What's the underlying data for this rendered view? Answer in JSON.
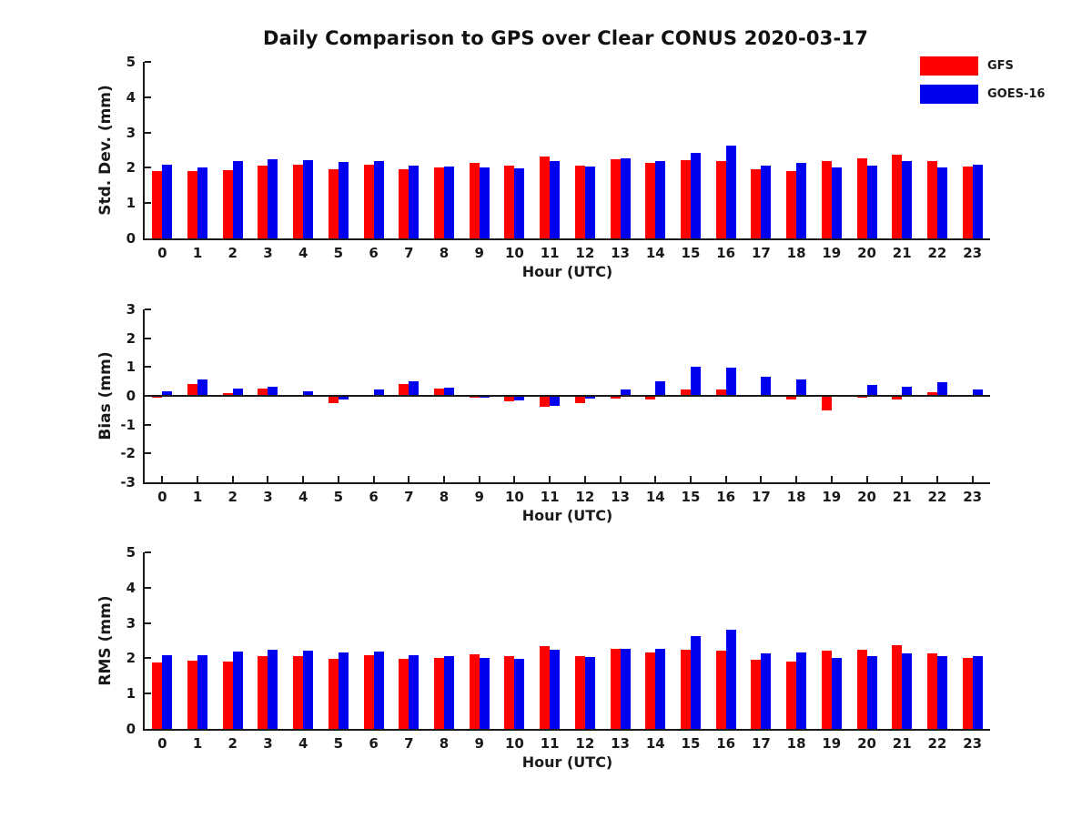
{
  "title": "Daily Comparison to GPS over Clear CONUS 2020-03-17",
  "legend": {
    "position": "top-right",
    "items": [
      {
        "label": "GFS",
        "color": "#ff0000"
      },
      {
        "label": "GOES-16",
        "color": "#0000f0"
      }
    ]
  },
  "colors": {
    "gfs": "#ff0000",
    "goes16": "#0000f0",
    "axis": "#1a1a1a"
  },
  "chart_data": [
    {
      "type": "bar",
      "panel": "std-dev",
      "ylabel": "Std. Dev. (mm)",
      "xlabel": "Hour (UTC)",
      "ylim": [
        0,
        5
      ],
      "yticks": [
        0,
        1,
        2,
        3,
        4,
        5
      ],
      "grid": false,
      "zero_line": false,
      "categories": [
        "0",
        "1",
        "2",
        "3",
        "4",
        "5",
        "6",
        "7",
        "8",
        "9",
        "10",
        "11",
        "12",
        "13",
        "14",
        "15",
        "16",
        "17",
        "18",
        "19",
        "20",
        "21",
        "22",
        "23"
      ],
      "series": [
        {
          "name": "GFS",
          "color": "#ff0000",
          "values": [
            1.9,
            1.92,
            1.94,
            2.06,
            2.08,
            1.96,
            2.08,
            1.97,
            2.01,
            2.13,
            2.07,
            2.31,
            2.07,
            2.25,
            2.15,
            2.22,
            2.2,
            1.97,
            1.91,
            2.19,
            2.26,
            2.38,
            2.18,
            2.03
          ]
        },
        {
          "name": "GOES-16",
          "color": "#0000f0",
          "values": [
            2.08,
            2.01,
            2.19,
            2.24,
            2.21,
            2.16,
            2.19,
            2.05,
            2.04,
            2.02,
            1.98,
            2.2,
            2.03,
            2.28,
            2.2,
            2.43,
            2.64,
            2.07,
            2.13,
            2.02,
            2.06,
            2.18,
            2.02,
            2.08
          ]
        }
      ]
    },
    {
      "type": "bar",
      "panel": "bias",
      "ylabel": "Bias (mm)",
      "xlabel": "Hour (UTC)",
      "ylim": [
        -3,
        3
      ],
      "yticks": [
        -3,
        -2,
        -1,
        0,
        1,
        2,
        3
      ],
      "grid": false,
      "zero_line": true,
      "categories": [
        "0",
        "1",
        "2",
        "3",
        "4",
        "5",
        "6",
        "7",
        "8",
        "9",
        "10",
        "11",
        "12",
        "13",
        "14",
        "15",
        "16",
        "17",
        "18",
        "19",
        "20",
        "21",
        "22",
        "23"
      ],
      "series": [
        {
          "name": "GFS",
          "color": "#ff0000",
          "values": [
            -0.07,
            0.4,
            0.1,
            0.25,
            -0.03,
            -0.25,
            -0.02,
            0.4,
            0.25,
            -0.05,
            -0.2,
            -0.39,
            -0.26,
            -0.11,
            -0.12,
            0.22,
            0.21,
            0.02,
            -0.12,
            -0.52,
            -0.07,
            -0.13,
            0.13,
            0.02
          ]
        },
        {
          "name": "GOES-16",
          "color": "#0000f0",
          "values": [
            0.15,
            0.58,
            0.25,
            0.33,
            0.15,
            -0.13,
            0.23,
            0.52,
            0.3,
            -0.06,
            -0.15,
            -0.36,
            -0.08,
            0.22,
            0.5,
            1.0,
            0.97,
            0.65,
            0.58,
            0.02,
            0.38,
            0.33,
            0.47,
            0.22
          ]
        }
      ]
    },
    {
      "type": "bar",
      "panel": "rms",
      "ylabel": "RMS (mm)",
      "xlabel": "Hour (UTC)",
      "ylim": [
        0,
        5
      ],
      "yticks": [
        0,
        1,
        2,
        3,
        4,
        5
      ],
      "grid": false,
      "zero_line": false,
      "categories": [
        "0",
        "1",
        "2",
        "3",
        "4",
        "5",
        "6",
        "7",
        "8",
        "9",
        "10",
        "11",
        "12",
        "13",
        "14",
        "15",
        "16",
        "17",
        "18",
        "19",
        "20",
        "21",
        "22",
        "23"
      ],
      "series": [
        {
          "name": "GFS",
          "color": "#ff0000",
          "values": [
            1.89,
            1.94,
            1.9,
            2.06,
            2.06,
            1.99,
            2.08,
            1.99,
            2.01,
            2.12,
            2.06,
            2.34,
            2.06,
            2.26,
            2.16,
            2.23,
            2.22,
            1.95,
            1.9,
            2.22,
            2.25,
            2.37,
            2.14,
            2.01
          ]
        },
        {
          "name": "GOES-16",
          "color": "#0000f0",
          "values": [
            2.08,
            2.08,
            2.2,
            2.25,
            2.21,
            2.17,
            2.2,
            2.08,
            2.06,
            2.01,
            1.99,
            2.23,
            2.04,
            2.28,
            2.26,
            2.62,
            2.8,
            2.14,
            2.17,
            2.01,
            2.06,
            2.15,
            2.06,
            2.07
          ]
        }
      ]
    }
  ]
}
